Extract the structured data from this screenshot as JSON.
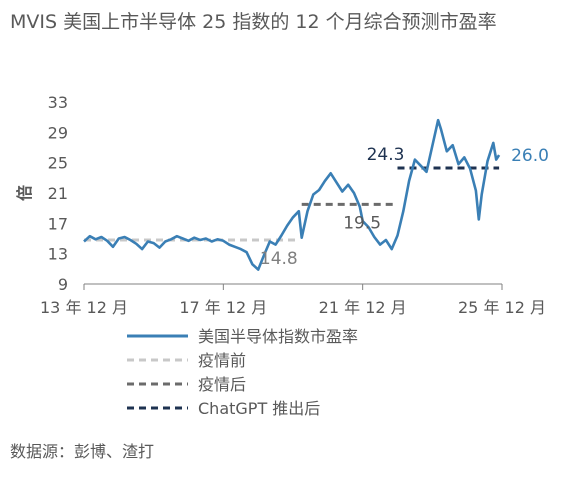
{
  "title": "MVIS 美国上市半导体 25 指数的 12 个月综合预测市盈率",
  "source": "数据源：彭博、渣打",
  "chart_data": {
    "type": "line",
    "ylabel": "倍",
    "ylim": [
      9,
      33
    ],
    "yticks": [
      9,
      13,
      17,
      21,
      25,
      29,
      33
    ],
    "xticks": [
      "13 年 12 月",
      "17 年 12 月",
      "21 年 12 月",
      "25 年 12 月"
    ],
    "xlim": [
      "2013-12",
      "2025-12"
    ],
    "series": [
      {
        "name": "美国半导体指数市盈率",
        "color": "#3a7fb5",
        "points": [
          [
            "2013-12",
            14.6
          ],
          [
            "2014-02",
            15.3
          ],
          [
            "2014-04",
            14.9
          ],
          [
            "2014-06",
            15.2
          ],
          [
            "2014-08",
            14.7
          ],
          [
            "2014-10",
            13.9
          ],
          [
            "2014-12",
            15.0
          ],
          [
            "2015-02",
            15.2
          ],
          [
            "2015-04",
            14.8
          ],
          [
            "2015-06",
            14.3
          ],
          [
            "2015-08",
            13.6
          ],
          [
            "2015-10",
            14.6
          ],
          [
            "2015-12",
            14.4
          ],
          [
            "2016-02",
            13.8
          ],
          [
            "2016-04",
            14.6
          ],
          [
            "2016-06",
            14.9
          ],
          [
            "2016-08",
            15.3
          ],
          [
            "2016-10",
            15.0
          ],
          [
            "2016-12",
            14.7
          ],
          [
            "2017-02",
            15.1
          ],
          [
            "2017-04",
            14.8
          ],
          [
            "2017-06",
            15.0
          ],
          [
            "2017-08",
            14.6
          ],
          [
            "2017-10",
            14.9
          ],
          [
            "2017-12",
            14.7
          ],
          [
            "2018-02",
            14.2
          ],
          [
            "2018-04",
            13.9
          ],
          [
            "2018-06",
            13.6
          ],
          [
            "2018-08",
            13.2
          ],
          [
            "2018-10",
            11.6
          ],
          [
            "2018-12",
            10.9
          ],
          [
            "2019-02",
            12.8
          ],
          [
            "2019-04",
            14.6
          ],
          [
            "2019-06",
            14.2
          ],
          [
            "2019-08",
            15.4
          ],
          [
            "2019-10",
            16.7
          ],
          [
            "2019-12",
            17.8
          ],
          [
            "2020-02",
            18.6
          ],
          [
            "2020-03",
            15.1
          ],
          [
            "2020-05",
            18.6
          ],
          [
            "2020-07",
            20.8
          ],
          [
            "2020-09",
            21.4
          ],
          [
            "2020-11",
            22.6
          ],
          [
            "2021-01",
            23.6
          ],
          [
            "2021-03",
            22.4
          ],
          [
            "2021-05",
            21.2
          ],
          [
            "2021-07",
            22.1
          ],
          [
            "2021-09",
            21.0
          ],
          [
            "2021-11",
            19.2
          ],
          [
            "2021-12",
            17.3
          ],
          [
            "2022-02",
            16.5
          ],
          [
            "2022-04",
            15.2
          ],
          [
            "2022-06",
            14.2
          ],
          [
            "2022-08",
            14.8
          ],
          [
            "2022-10",
            13.6
          ],
          [
            "2022-12",
            15.4
          ],
          [
            "2023-02",
            18.6
          ],
          [
            "2023-04",
            22.6
          ],
          [
            "2023-06",
            25.4
          ],
          [
            "2023-08",
            24.6
          ],
          [
            "2023-10",
            23.8
          ],
          [
            "2023-12",
            27.2
          ],
          [
            "2024-02",
            30.6
          ],
          [
            "2024-03",
            29.4
          ],
          [
            "2024-05",
            26.5
          ],
          [
            "2024-07",
            27.3
          ],
          [
            "2024-09",
            24.8
          ],
          [
            "2024-11",
            25.7
          ],
          [
            "2025-01",
            24.2
          ],
          [
            "2025-03",
            21.3
          ],
          [
            "2025-04",
            17.5
          ],
          [
            "2025-05",
            20.8
          ],
          [
            "2025-07",
            25.2
          ],
          [
            "2025-09",
            27.6
          ],
          [
            "2025-10",
            25.4
          ],
          [
            "2025-11",
            26.0
          ]
        ]
      },
      {
        "name": "疫情前",
        "color": "#c8c8c8",
        "dashed": true,
        "value": 14.8,
        "from": "2013-12",
        "to": "2020-02",
        "label": "14.8",
        "label_color": "#808080"
      },
      {
        "name": "疫情后",
        "color": "#6b6b6b",
        "dashed": true,
        "value": 19.5,
        "from": "2020-03",
        "to": "2022-11",
        "label": "19.5",
        "label_color": "#595959"
      },
      {
        "name": "ChatGPT 推出后",
        "color": "#1e3250",
        "dashed": true,
        "value": 24.3,
        "from": "2022-12",
        "to": "2025-11",
        "label": "24.3",
        "label_color": "#1e3250"
      }
    ],
    "end_label": "26.0",
    "end_label_color": "#3a7fb5",
    "legend_position": "bottom",
    "grid": false
  }
}
